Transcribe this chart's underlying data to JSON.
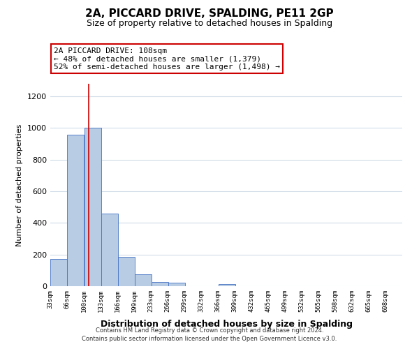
{
  "title": "2A, PICCARD DRIVE, SPALDING, PE11 2GP",
  "subtitle": "Size of property relative to detached houses in Spalding",
  "xlabel": "Distribution of detached houses by size in Spalding",
  "ylabel": "Number of detached properties",
  "bar_color": "#b8cce4",
  "bar_edge_color": "#4472c4",
  "bins_left": [
    33,
    66,
    100,
    133,
    166,
    199,
    233,
    266,
    299,
    332,
    365,
    398,
    431,
    464,
    497,
    530,
    563,
    596,
    629,
    662
  ],
  "bin_width": 33,
  "bar_heights": [
    170,
    960,
    1000,
    460,
    185,
    75,
    25,
    20,
    0,
    0,
    15,
    0,
    0,
    0,
    0,
    0,
    0,
    0,
    0,
    0
  ],
  "xtick_labels": [
    "33sqm",
    "66sqm",
    "100sqm",
    "133sqm",
    "166sqm",
    "199sqm",
    "233sqm",
    "266sqm",
    "299sqm",
    "332sqm",
    "366sqm",
    "399sqm",
    "432sqm",
    "465sqm",
    "499sqm",
    "532sqm",
    "565sqm",
    "598sqm",
    "632sqm",
    "665sqm",
    "698sqm"
  ],
  "ylim": [
    0,
    1280
  ],
  "yticks": [
    0,
    200,
    400,
    600,
    800,
    1000,
    1200
  ],
  "vline_x": 108,
  "vline_color": "#cc0000",
  "annotation_title": "2A PICCARD DRIVE: 108sqm",
  "annotation_line1": "← 48% of detached houses are smaller (1,379)",
  "annotation_line2": "52% of semi-detached houses are larger (1,498) →",
  "annotation_box_color": "#ffffff",
  "annotation_box_edge": "#cc0000",
  "footnote1": "Contains HM Land Registry data © Crown copyright and database right 2024.",
  "footnote2": "Contains public sector information licensed under the Open Government Licence v3.0.",
  "background_color": "#ffffff",
  "grid_color": "#d0dce8"
}
